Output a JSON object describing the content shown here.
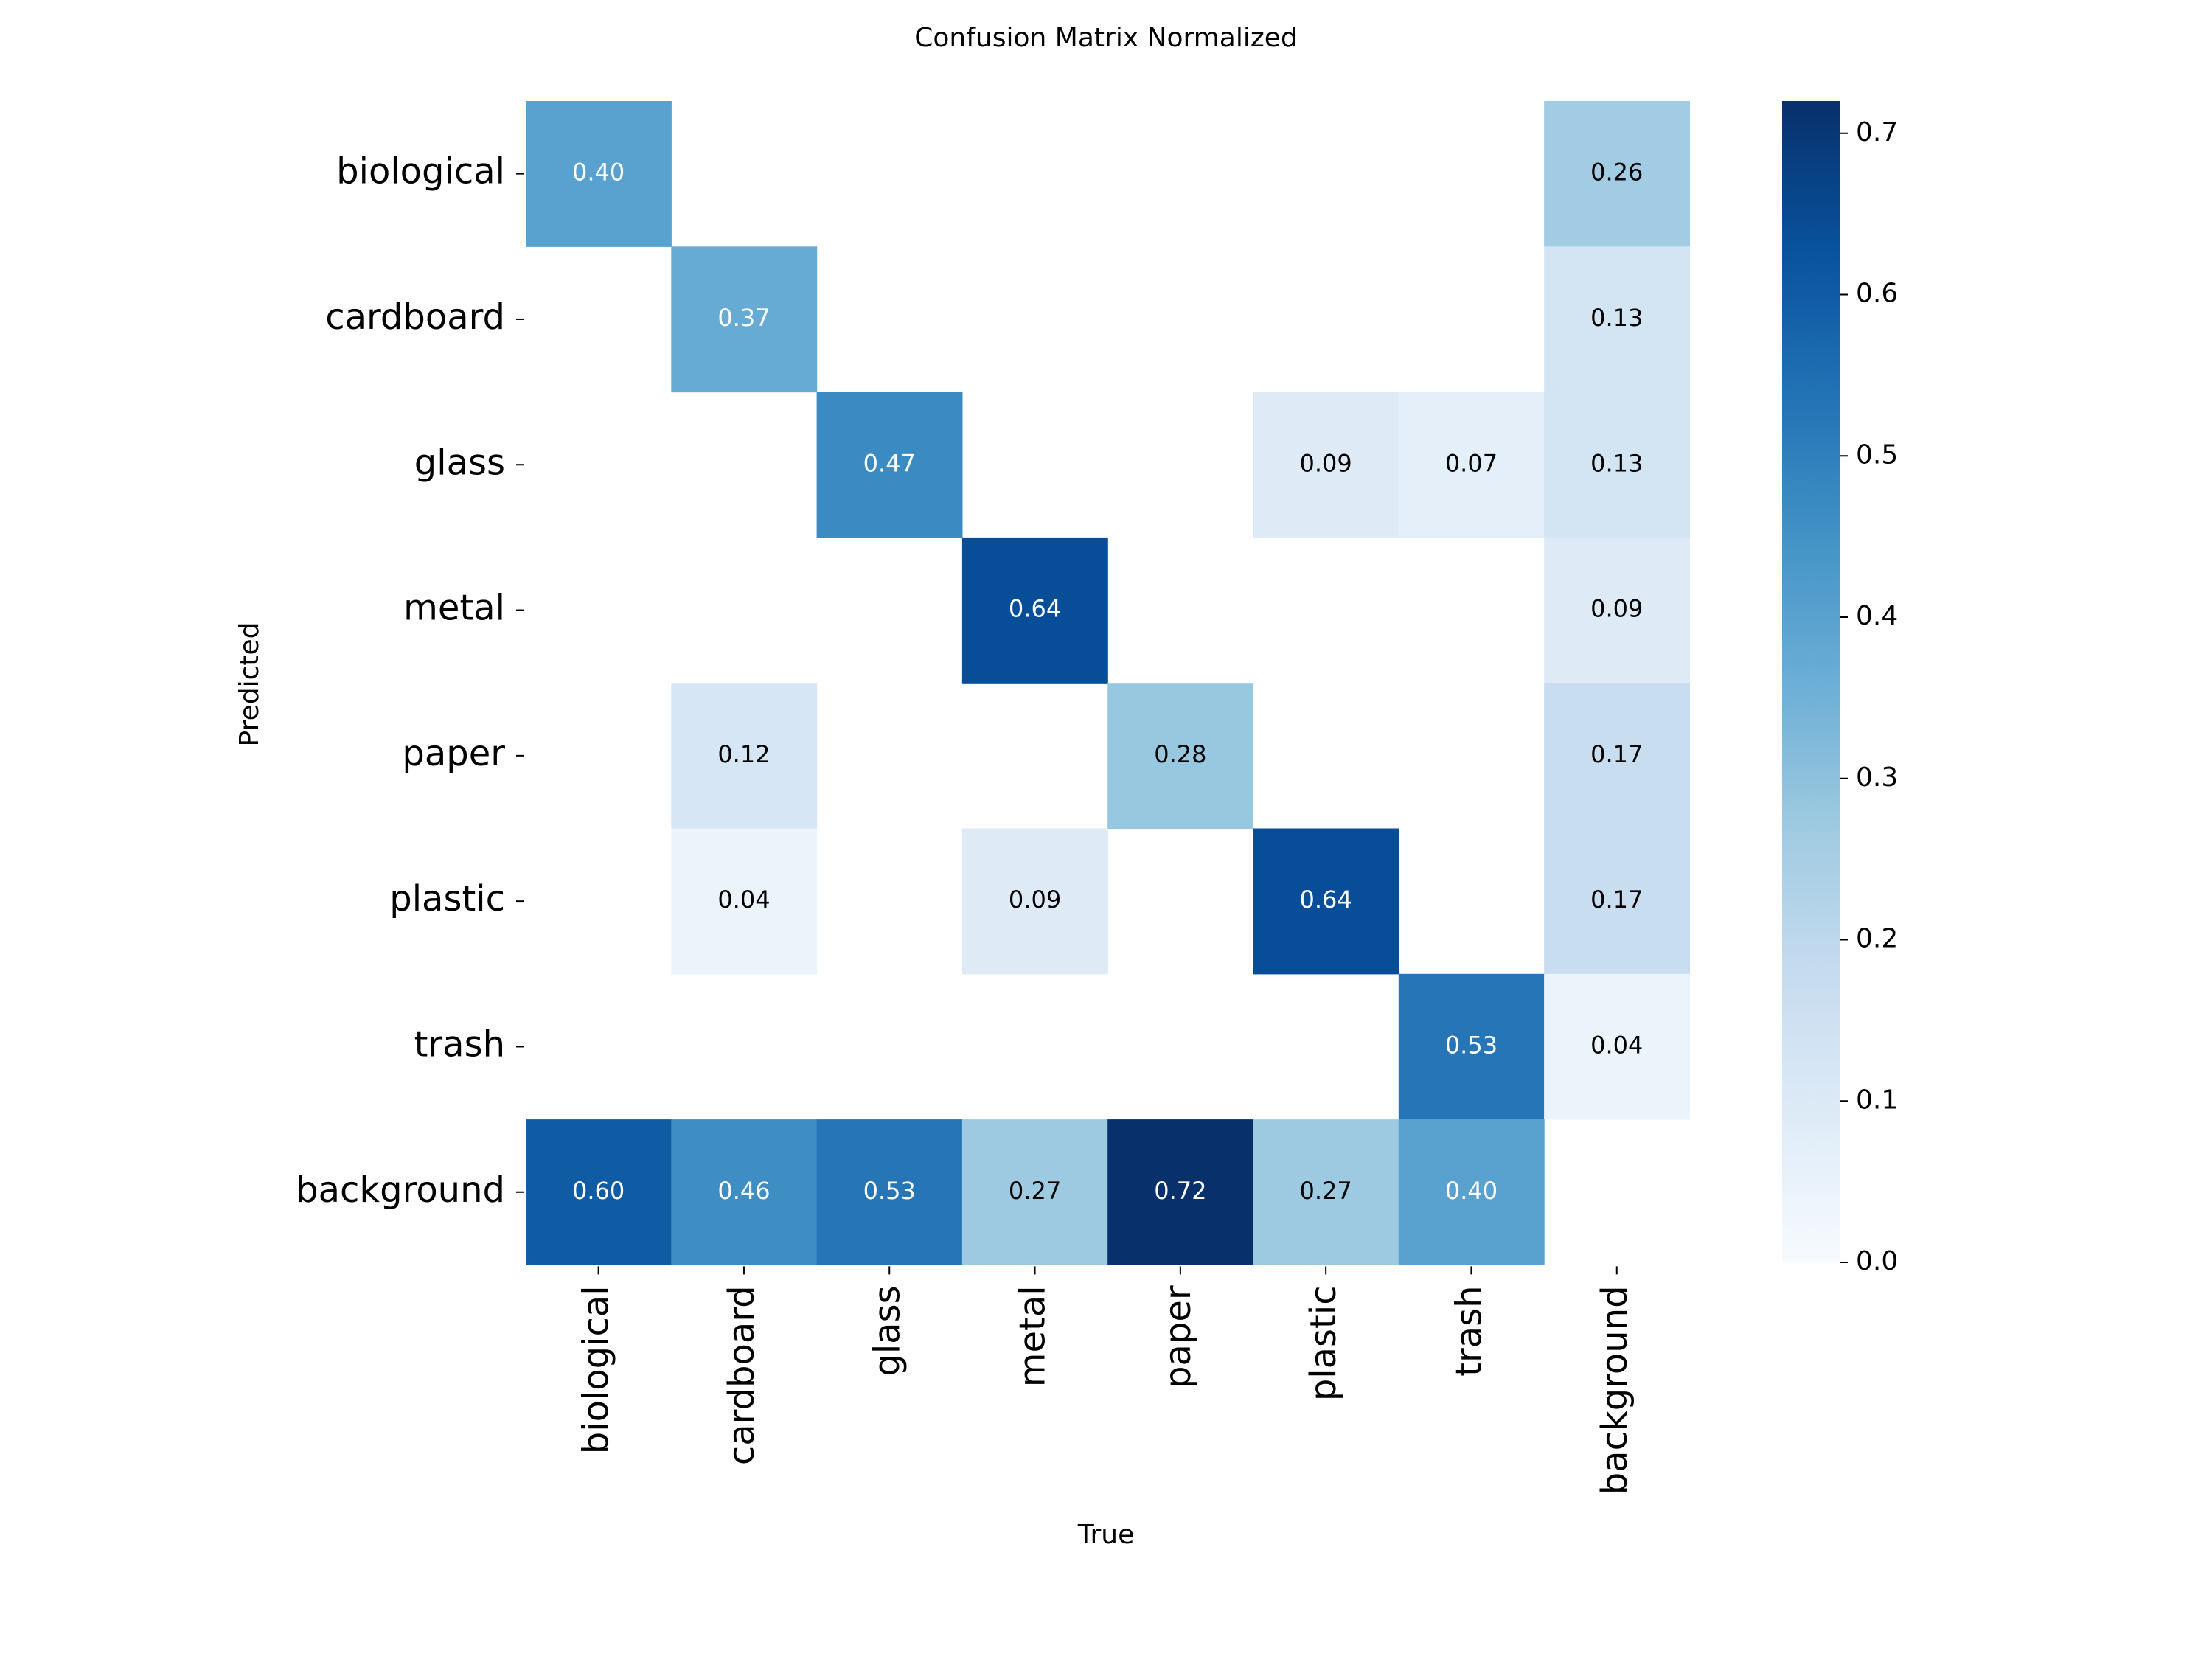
{
  "chart_data": {
    "type": "heatmap",
    "title": "Confusion Matrix Normalized",
    "xlabel": "True",
    "ylabel": "Predicted",
    "x_categories": [
      "biological",
      "cardboard",
      "glass",
      "metal",
      "paper",
      "plastic",
      "trash",
      "background"
    ],
    "y_categories": [
      "biological",
      "cardboard",
      "glass",
      "metal",
      "paper",
      "plastic",
      "trash",
      "background"
    ],
    "values": [
      [
        0.4,
        null,
        null,
        null,
        null,
        null,
        null,
        0.26
      ],
      [
        null,
        0.37,
        null,
        null,
        null,
        null,
        null,
        0.13
      ],
      [
        null,
        null,
        0.47,
        null,
        null,
        0.09,
        0.07,
        0.13
      ],
      [
        null,
        null,
        null,
        0.64,
        null,
        null,
        null,
        0.09
      ],
      [
        null,
        0.12,
        null,
        null,
        0.28,
        null,
        null,
        0.17
      ],
      [
        null,
        0.04,
        null,
        0.09,
        null,
        0.64,
        null,
        0.17
      ],
      [
        null,
        null,
        null,
        null,
        null,
        null,
        0.53,
        0.04
      ],
      [
        0.6,
        0.46,
        0.53,
        0.27,
        0.72,
        0.27,
        0.4,
        null
      ]
    ],
    "colorbar": {
      "colormap": "Blues",
      "range": [
        0,
        0.72
      ],
      "ticks": [
        0.0,
        0.1,
        0.2,
        0.3,
        0.4,
        0.5,
        0.6,
        0.7
      ],
      "tick_labels": [
        "0.0",
        "0.1",
        "0.2",
        "0.3",
        "0.4",
        "0.5",
        "0.6",
        "0.7"
      ]
    },
    "grid": false
  }
}
